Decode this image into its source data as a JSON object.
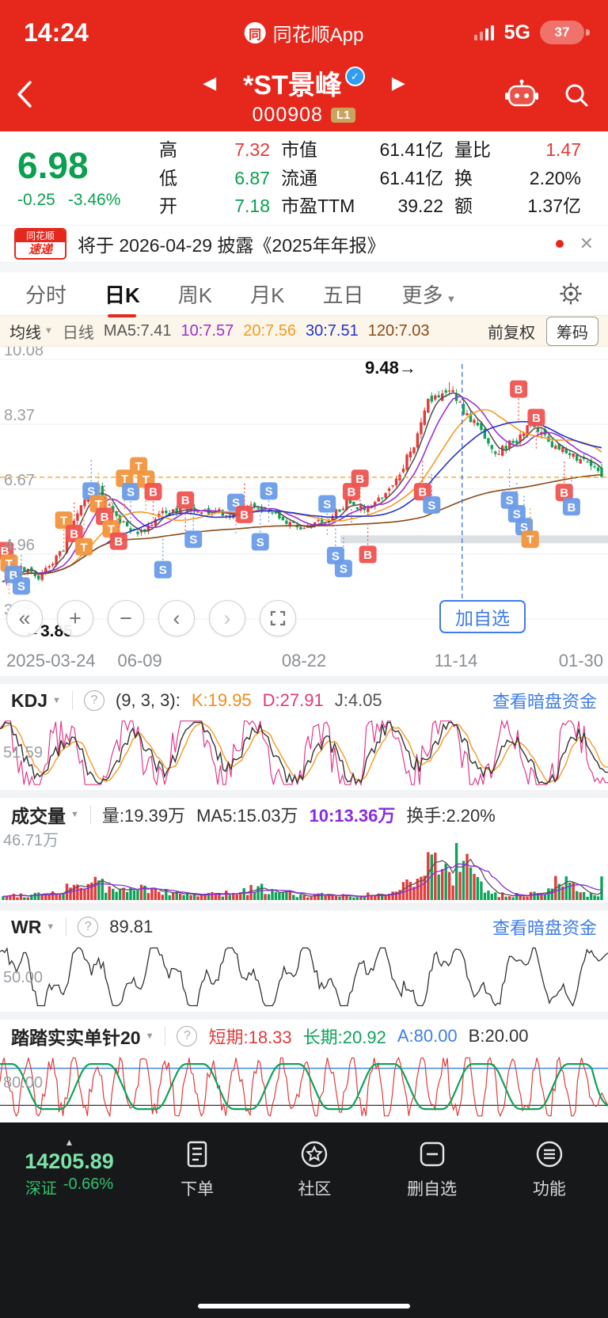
{
  "status_bar": {
    "time": "14:24",
    "app_name": "同花顺App",
    "network": "5G",
    "battery_percent": "37"
  },
  "header": {
    "title": "*ST景峰",
    "code": "000908",
    "level_badge": "L1"
  },
  "quote": {
    "price": "6.98",
    "change": "-0.25",
    "change_pct": "-3.46%",
    "high_label": "高",
    "high": "7.32",
    "low_label": "低",
    "low": "6.87",
    "open_label": "开",
    "open": "7.18",
    "mktcap_label": "市值",
    "mktcap": "61.41亿",
    "float_label": "流通",
    "float": "61.41亿",
    "pe_label": "市盈TTM",
    "pe": "39.22",
    "volratio_label": "量比",
    "volratio": "1.47",
    "turnover_label": "换",
    "turnover": "2.20%",
    "amount_label": "额",
    "amount": "1.37亿"
  },
  "news_bar": {
    "logo_top": "同花顺",
    "logo_bottom": "速递",
    "text": "将于 2026-04-29 披露《2025年年报》",
    "close": "✕"
  },
  "tabs": {
    "items": [
      "分时",
      "日K",
      "周K",
      "月K",
      "五日",
      "更多"
    ],
    "active_index": 1
  },
  "ma_bar": {
    "dropdown": "均线",
    "period": "日线",
    "ma5": "MA5:7.41",
    "ma10": "10:7.57",
    "ma20": "20:7.56",
    "ma30": "30:7.51",
    "ma120": "120:7.03",
    "adjust": "前复权",
    "chip_button": "筹码"
  },
  "main_chart_controls": {
    "add_watchlist": "加自选"
  },
  "panels": {
    "kdj": {
      "name": "KDJ",
      "params": "(9, 3, 3):",
      "k": "K:19.95",
      "d": "D:27.91",
      "j": "J:4.05",
      "link": "查看暗盘资金"
    },
    "volume": {
      "name": "成交量",
      "vol": "量:19.39万",
      "ma5": "MA5:15.03万",
      "ma10": "10:13.36万",
      "turnover": "换手:2.20%"
    },
    "wr": {
      "name": "WR",
      "value": "89.81",
      "link": "查看暗盘资金"
    },
    "custom": {
      "name": "踏踏实实单针20",
      "short": "短期:18.33",
      "long": "长期:20.92",
      "a": "A:80.00",
      "b": "B:20.00"
    }
  },
  "bottom_nav": {
    "index_value": "14205.89",
    "index_name": "深证",
    "index_change": "-0.66%",
    "items": [
      "下单",
      "社区",
      "删自选",
      "功能"
    ]
  },
  "chart_data": [
    {
      "id": "main",
      "type": "candlestick",
      "title": "日K 前复权",
      "y_ticks": [
        "10.08",
        "8.37",
        "6.67",
        "4.96",
        "3.25"
      ],
      "y_range": [
        3.25,
        10.08
      ],
      "x_labels": [
        "2025-03-24",
        "06-09",
        "08-22",
        "11-14",
        "01-30"
      ],
      "period_high": 9.48,
      "period_low": 3.85,
      "high_annotation": "9.48→",
      "low_annotation": "←3.85",
      "current_price": 6.98,
      "ma_values": {
        "ma5": 7.41,
        "ma10": 7.57,
        "ma20": 7.56,
        "ma30": 7.51,
        "ma120": 7.03
      },
      "n_candles": 170,
      "price_waypoints": [
        [
          0,
          4.25
        ],
        [
          0.03,
          4.6
        ],
        [
          0.06,
          4.35
        ],
        [
          0.1,
          5.1
        ],
        [
          0.13,
          6.2
        ],
        [
          0.155,
          6.75
        ],
        [
          0.175,
          6.3
        ],
        [
          0.2,
          5.75
        ],
        [
          0.225,
          5.5
        ],
        [
          0.27,
          6.05
        ],
        [
          0.33,
          6.15
        ],
        [
          0.38,
          6.0
        ],
        [
          0.42,
          6.3
        ],
        [
          0.46,
          5.9
        ],
        [
          0.5,
          5.6
        ],
        [
          0.54,
          5.85
        ],
        [
          0.575,
          6.35
        ],
        [
          0.61,
          6.1
        ],
        [
          0.64,
          6.55
        ],
        [
          0.68,
          7.6
        ],
        [
          0.71,
          8.9
        ],
        [
          0.745,
          9.3
        ],
        [
          0.77,
          8.7
        ],
        [
          0.8,
          8.15
        ],
        [
          0.825,
          7.6
        ],
        [
          0.86,
          8.0
        ],
        [
          0.885,
          8.45
        ],
        [
          0.915,
          7.85
        ],
        [
          0.95,
          7.55
        ],
        [
          0.98,
          7.3
        ],
        [
          1,
          6.98
        ]
      ],
      "event_line_x": 0.76,
      "colors": {
        "up": "#e23b3b",
        "down": "#0ea35a",
        "ma5": "#555555",
        "ma10": "#9b30d0",
        "ma20": "#f59a23",
        "ma30": "#2433c9",
        "ma120": "#8a4a17",
        "marker_red": "#ef5350",
        "marker_blue": "#6b9ce8",
        "marker_orange": "#f2953f"
      },
      "markers": [
        [
          0.008,
          5.05,
          "B",
          "red"
        ],
        [
          0.015,
          4.72,
          "T",
          "orange"
        ],
        [
          0.022,
          4.42,
          "B",
          "blue"
        ],
        [
          0.035,
          4.12,
          "S",
          "blue"
        ],
        [
          0.105,
          5.85,
          "T",
          "orange"
        ],
        [
          0.122,
          5.5,
          "B",
          "red"
        ],
        [
          0.138,
          5.15,
          "T",
          "orange"
        ],
        [
          0.15,
          6.62,
          "S",
          "blue"
        ],
        [
          0.162,
          6.28,
          "T",
          "orange"
        ],
        [
          0.172,
          5.95,
          "B",
          "red"
        ],
        [
          0.183,
          5.62,
          "T",
          "orange"
        ],
        [
          0.195,
          5.3,
          "B",
          "red"
        ],
        [
          0.205,
          6.95,
          "T",
          "orange"
        ],
        [
          0.215,
          6.6,
          "S",
          "blue"
        ],
        [
          0.228,
          7.28,
          "T",
          "orange"
        ],
        [
          0.24,
          6.93,
          "T",
          "orange"
        ],
        [
          0.252,
          6.6,
          "B",
          "red"
        ],
        [
          0.268,
          4.55,
          "S",
          "blue"
        ],
        [
          0.305,
          6.38,
          "B",
          "red"
        ],
        [
          0.318,
          5.35,
          "S",
          "blue"
        ],
        [
          0.388,
          6.32,
          "S",
          "blue"
        ],
        [
          0.402,
          6.0,
          "B",
          "red"
        ],
        [
          0.428,
          5.28,
          "S",
          "blue"
        ],
        [
          0.442,
          6.62,
          "S",
          "blue"
        ],
        [
          0.538,
          6.28,
          "S",
          "blue"
        ],
        [
          0.552,
          4.92,
          "S",
          "blue"
        ],
        [
          0.565,
          4.58,
          "S",
          "blue"
        ],
        [
          0.578,
          6.6,
          "B",
          "red"
        ],
        [
          0.592,
          6.95,
          "B",
          "red"
        ],
        [
          0.605,
          4.95,
          "B",
          "red"
        ],
        [
          0.695,
          6.6,
          "B",
          "red"
        ],
        [
          0.71,
          6.25,
          "S",
          "blue"
        ],
        [
          0.838,
          6.38,
          "S",
          "blue"
        ],
        [
          0.85,
          6.02,
          "S",
          "blue"
        ],
        [
          0.862,
          5.68,
          "S",
          "blue"
        ],
        [
          0.872,
          5.35,
          "T",
          "orange"
        ],
        [
          0.853,
          9.3,
          "B",
          "red"
        ],
        [
          0.882,
          8.55,
          "B",
          "red"
        ],
        [
          0.928,
          6.58,
          "B",
          "red"
        ],
        [
          0.94,
          6.2,
          "B",
          "blue"
        ]
      ]
    },
    {
      "id": "kdj",
      "type": "line",
      "range": [
        0,
        100
      ],
      "k": 19.95,
      "d": 27.91,
      "j": 4.05,
      "mid_label": "51.59",
      "colors": {
        "k": "#333333",
        "d": "#f59a23",
        "j": "#e23a8e"
      }
    },
    {
      "id": "volume",
      "type": "bar",
      "unit": "万",
      "last": 19.39,
      "ma5": 15.03,
      "ma10": 13.36,
      "peak": 46.71,
      "max_label": "46.71万",
      "colors": {
        "ma5": "#555555",
        "ma10": "#8a2be2"
      }
    },
    {
      "id": "wr",
      "type": "line",
      "range": [
        0,
        100
      ],
      "last": 89.81,
      "mid_label": "50.00",
      "color": "#333333"
    },
    {
      "id": "custom",
      "type": "line",
      "range": [
        0,
        100
      ],
      "short_last": 18.33,
      "long_last": 20.92,
      "a_level": 80,
      "b_level": 20,
      "axis_label": "80.00",
      "colors": {
        "short": "#e23b3b",
        "long": "#0ea35a",
        "a": "#4a90e2",
        "b": "#333333"
      }
    }
  ]
}
